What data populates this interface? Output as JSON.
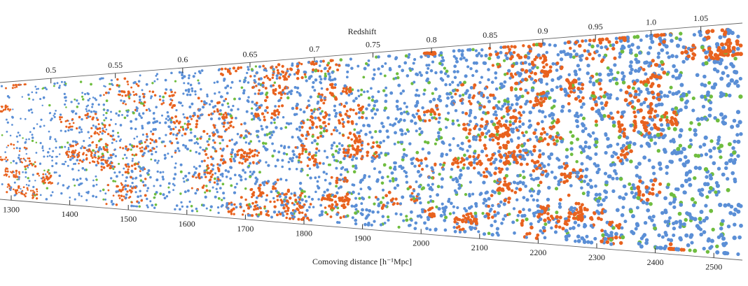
{
  "chart_data": {
    "type": "scatter",
    "xlabel": "Comoving distance [h⁻¹Mpc]",
    "top_axis_label": "Redshift",
    "distance_ticks": [
      1300,
      1400,
      1500,
      1600,
      1700,
      1800,
      1900,
      2000,
      2100,
      2200,
      2300,
      2400,
      2500
    ],
    "redshift_ticks": [
      {
        "label": "0.5",
        "distance": 1320
      },
      {
        "label": "0.55",
        "distance": 1430
      },
      {
        "label": "0.6",
        "distance": 1545
      },
      {
        "label": "0.65",
        "distance": 1660
      },
      {
        "label": "0.7",
        "distance": 1770
      },
      {
        "label": "0.75",
        "distance": 1870
      },
      {
        "label": "0.8",
        "distance": 1970
      },
      {
        "label": "0.85",
        "distance": 2070
      },
      {
        "label": "0.9",
        "distance": 2160
      },
      {
        "label": "0.95",
        "distance": 2250
      },
      {
        "label": "1.0",
        "distance": 2345
      },
      {
        "label": "1.05",
        "distance": 2430
      }
    ],
    "xlim": [
      1240,
      2550
    ],
    "grid": false,
    "series": [
      {
        "color": "#5b8fd6"
      },
      {
        "color": "#e8621f"
      },
      {
        "color": "#6fbd3f"
      }
    ]
  }
}
